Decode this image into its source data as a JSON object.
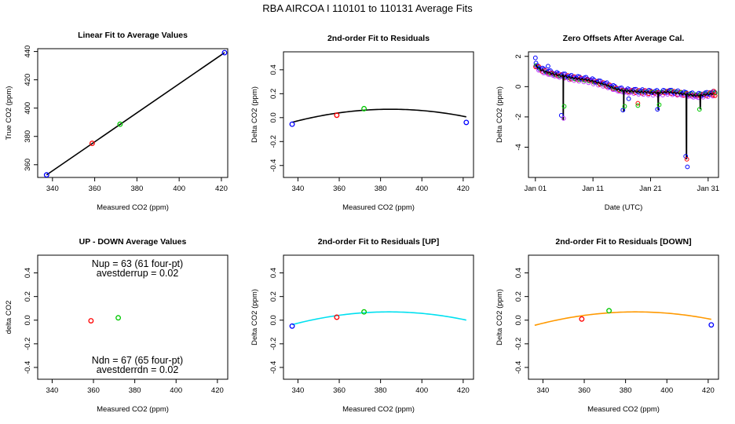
{
  "figure": {
    "title": "RBA   AIRCOA I   110101 to 110131    Average Fits"
  },
  "colors": {
    "red": "#ff0000",
    "green": "#00c800",
    "blue": "#0000ff",
    "magenta": "#c040ff",
    "black": "#000000",
    "cyan": "#00e0f0",
    "orange": "#ff9900"
  },
  "chart_data": [
    {
      "id": "p1",
      "type": "scatter",
      "title": "Linear Fit to Average Values",
      "xlabel": "Measured CO2 (ppm)",
      "ylabel": "True CO2 (ppm)",
      "xlim": [
        333,
        423
      ],
      "ylim": [
        351,
        442
      ],
      "xticks": [
        340,
        360,
        380,
        400,
        420
      ],
      "yticks": [
        360,
        380,
        400,
        420,
        440
      ],
      "points": [
        {
          "x": 337.2,
          "y": 352.8,
          "color": "blue"
        },
        {
          "x": 358.8,
          "y": 375.1,
          "color": "red"
        },
        {
          "x": 372.0,
          "y": 388.6,
          "color": "green"
        },
        {
          "x": 421.5,
          "y": 439.2,
          "color": "blue"
        }
      ],
      "fit_line": {
        "x": [
          337.2,
          421.5
        ],
        "y": [
          352.8,
          439.2
        ],
        "color": "black"
      }
    },
    {
      "id": "p2",
      "type": "scatter",
      "title": "2nd-order Fit to Residuals",
      "xlabel": "Measured CO2 (ppm)",
      "ylabel": "Delta CO2 (ppm)",
      "xlim": [
        333,
        425
      ],
      "ylim": [
        -0.5,
        0.55
      ],
      "xticks": [
        340,
        360,
        380,
        400,
        420
      ],
      "yticks": [
        -0.4,
        -0.2,
        0.0,
        0.2,
        0.4
      ],
      "points": [
        {
          "x": 337.2,
          "y": -0.055,
          "color": "blue"
        },
        {
          "x": 358.8,
          "y": 0.02,
          "color": "red"
        },
        {
          "x": 372.0,
          "y": 0.075,
          "color": "green"
        },
        {
          "x": 421.5,
          "y": -0.04,
          "color": "blue"
        }
      ],
      "fit_curve": {
        "a": -4.77e-05,
        "vertex_x": 385.0,
        "vertex_y": 0.07,
        "x_range": [
          337.2,
          421.5
        ],
        "color": "black"
      }
    },
    {
      "id": "p3",
      "type": "scatter",
      "title": "Zero Offsets After Average Cal.",
      "xlabel": "Date (UTC)",
      "ylabel": "Delta CO2 (ppm)",
      "xlim": [
        -1.2,
        31.8
      ],
      "ylim": [
        -6.0,
        2.3
      ],
      "xticks": [
        0,
        10,
        20,
        30
      ],
      "xticklabels": [
        "Jan 01",
        "Jan 11",
        "Jan 21",
        "Jan 31"
      ],
      "yticks": [
        -4,
        -2,
        0,
        2
      ],
      "trend": [
        [
          0,
          1.4
        ],
        [
          1,
          1.1
        ],
        [
          2,
          0.95
        ],
        [
          3,
          0.85
        ],
        [
          4,
          0.75
        ],
        [
          5,
          0.7
        ],
        [
          6,
          0.6
        ],
        [
          7,
          0.55
        ],
        [
          8,
          0.5
        ],
        [
          9,
          0.45
        ],
        [
          10,
          0.35
        ],
        [
          11,
          0.25
        ],
        [
          12,
          0.15
        ],
        [
          13,
          0.0
        ],
        [
          14,
          -0.15
        ],
        [
          15,
          -0.25
        ],
        [
          16,
          -0.3
        ],
        [
          17,
          -0.3
        ],
        [
          18,
          -0.35
        ],
        [
          19,
          -0.35
        ],
        [
          20,
          -0.4
        ],
        [
          21,
          -0.4
        ],
        [
          22,
          -0.4
        ],
        [
          23,
          -0.35
        ],
        [
          24,
          -0.4
        ],
        [
          25,
          -0.45
        ],
        [
          26,
          -0.5
        ],
        [
          27,
          -0.55
        ],
        [
          28,
          -0.6
        ],
        [
          29,
          -0.55
        ],
        [
          30,
          -0.5
        ],
        [
          31,
          -0.45
        ]
      ],
      "spikes": [
        {
          "day": 4.8,
          "min": -2.2
        },
        {
          "day": 15.3,
          "min": -1.6
        },
        {
          "day": 21.3,
          "min": -1.55
        },
        {
          "day": 26.2,
          "min": -4.8
        },
        {
          "day": 28.6,
          "min": -1.5
        }
      ],
      "outliers": [
        {
          "x": 0.0,
          "y": 1.9,
          "color": "blue"
        },
        {
          "x": 2.2,
          "y": 1.35,
          "color": "blue"
        },
        {
          "x": 4.5,
          "y": -1.9,
          "color": "blue"
        },
        {
          "x": 4.9,
          "y": -2.1,
          "color": "magenta"
        },
        {
          "x": 5.0,
          "y": -1.3,
          "color": "green"
        },
        {
          "x": 15.2,
          "y": -1.55,
          "color": "blue"
        },
        {
          "x": 15.5,
          "y": -1.3,
          "color": "green"
        },
        {
          "x": 16.2,
          "y": -0.8,
          "color": "blue"
        },
        {
          "x": 17.8,
          "y": -1.1,
          "color": "red"
        },
        {
          "x": 17.8,
          "y": -1.25,
          "color": "green"
        },
        {
          "x": 21.2,
          "y": -1.5,
          "color": "blue"
        },
        {
          "x": 21.5,
          "y": -1.2,
          "color": "green"
        },
        {
          "x": 26.1,
          "y": -4.6,
          "color": "blue"
        },
        {
          "x": 26.3,
          "y": -4.8,
          "color": "red"
        },
        {
          "x": 26.4,
          "y": -5.3,
          "color": "blue"
        },
        {
          "x": 28.5,
          "y": -1.5,
          "color": "green"
        },
        {
          "x": 31.0,
          "y": -0.3,
          "color": "red"
        },
        {
          "x": 31.2,
          "y": -0.6,
          "color": "red"
        }
      ]
    },
    {
      "id": "p4",
      "type": "scatter",
      "title": "UP - DOWN Average Values",
      "xlabel": "Measured CO2 (ppm)",
      "ylabel": "delta CO2",
      "xlim": [
        333,
        425
      ],
      "ylim": [
        -0.5,
        0.55
      ],
      "xticks": [
        340,
        360,
        380,
        400,
        420
      ],
      "yticks": [
        -0.4,
        -0.2,
        0.0,
        0.2,
        0.4
      ],
      "points": [
        {
          "x": 358.8,
          "y": -0.005,
          "color": "red"
        },
        {
          "x": 372.0,
          "y": 0.02,
          "color": "green"
        }
      ],
      "annotations": {
        "nup": "Nup = 63 (61 four-pt)",
        "avestderrup": "avestderrup =  0.02",
        "ndn": "Ndn = 67 (65 four-pt)",
        "avestderrdn": "avestderrdn =  0.02"
      }
    },
    {
      "id": "p5",
      "type": "scatter",
      "title": "2nd-order Fit to Residuals [UP]",
      "xlabel": "Measured CO2 (ppm)",
      "ylabel": "Delta CO2 (ppm)",
      "xlim": [
        333,
        425
      ],
      "ylim": [
        -0.5,
        0.55
      ],
      "xticks": [
        340,
        360,
        380,
        400,
        420
      ],
      "yticks": [
        -0.4,
        -0.2,
        0.0,
        0.2,
        0.4
      ],
      "points": [
        {
          "x": 337.2,
          "y": -0.05,
          "color": "blue"
        },
        {
          "x": 358.8,
          "y": 0.025,
          "color": "red"
        },
        {
          "x": 372.0,
          "y": 0.07,
          "color": "green"
        }
      ],
      "fit_curve": {
        "a": -4.93e-05,
        "vertex_x": 384.0,
        "vertex_y": 0.07,
        "x_range": [
          337.2,
          421.5
        ],
        "color": "cyan"
      }
    },
    {
      "id": "p6",
      "type": "scatter",
      "title": "2nd-order Fit to Residuals [DOWN]",
      "xlabel": "Measured CO2 (ppm)",
      "ylabel": "Delta CO2 (ppm)",
      "xlim": [
        333,
        425
      ],
      "ylim": [
        -0.5,
        0.55
      ],
      "xticks": [
        340,
        360,
        380,
        400,
        420
      ],
      "yticks": [
        -0.4,
        -0.2,
        0.0,
        0.2,
        0.4
      ],
      "points": [
        {
          "x": 358.8,
          "y": 0.01,
          "color": "red"
        },
        {
          "x": 372.0,
          "y": 0.08,
          "color": "green"
        },
        {
          "x": 421.5,
          "y": -0.04,
          "color": "blue"
        }
      ],
      "fit_curve": {
        "a": -4.73e-05,
        "vertex_x": 385.0,
        "vertex_y": 0.07,
        "x_range": [
          336.0,
          421.5
        ],
        "color": "orange"
      }
    }
  ]
}
